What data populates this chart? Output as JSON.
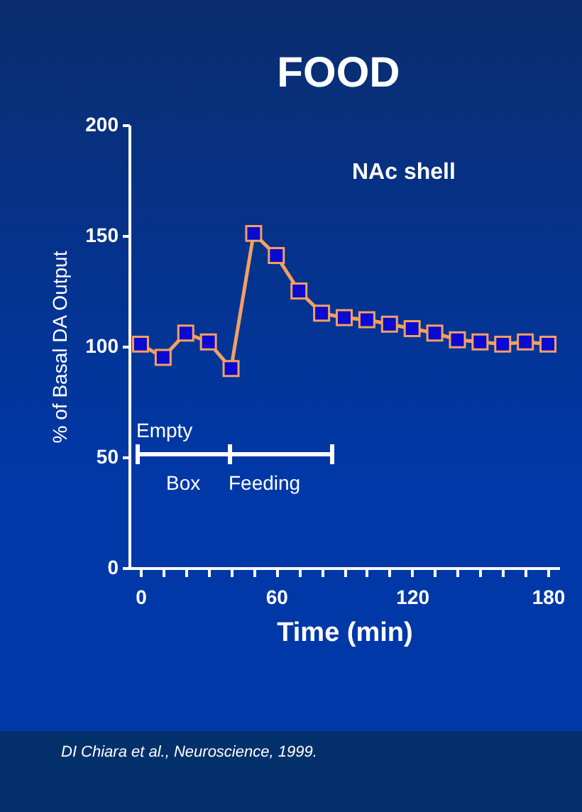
{
  "chart_data": {
    "type": "line",
    "title": "FOOD",
    "xlabel": "Time (min)",
    "ylabel": "% of Basal  DA Output",
    "x": [
      0,
      10,
      20,
      30,
      40,
      50,
      60,
      70,
      80,
      90,
      100,
      110,
      120,
      130,
      140,
      150,
      160,
      170,
      180
    ],
    "series": [
      {
        "color": "#f4a060",
        "values": [
          101,
          95,
          106,
          102,
          90,
          151,
          141,
          125,
          115,
          113,
          112,
          110,
          108,
          106,
          103,
          102,
          101,
          102,
          101
        ]
      }
    ],
    "marker": "square",
    "xlim": [
      -5,
      185
    ],
    "xticks": [
      0,
      {
        "value": 10,
        "label": null
      },
      {
        "value": 20,
        "label": null
      },
      {
        "value": 30,
        "label": null
      },
      {
        "value": 40,
        "label": null
      },
      {
        "value": 50,
        "label": null
      },
      60,
      {
        "value": 70,
        "label": null
      },
      {
        "value": 80,
        "label": null
      },
      {
        "value": 90,
        "label": null
      },
      {
        "value": 100,
        "label": null
      },
      {
        "value": 110,
        "label": null
      },
      120,
      {
        "value": 130,
        "label": null
      },
      {
        "value": 140,
        "label": null
      },
      {
        "value": 150,
        "label": null
      },
      {
        "value": 160,
        "label": null
      },
      {
        "value": 170,
        "label": null
      },
      180
    ],
    "ylim": [
      0,
      200
    ],
    "yticks": [
      0,
      50,
      100,
      150,
      200
    ],
    "grid": false,
    "annotations": [
      "NAc shell",
      "Empty",
      "Box",
      "Feeding",
      "DI Chiara et al.,  Neuroscience,  1999."
    ]
  }
}
